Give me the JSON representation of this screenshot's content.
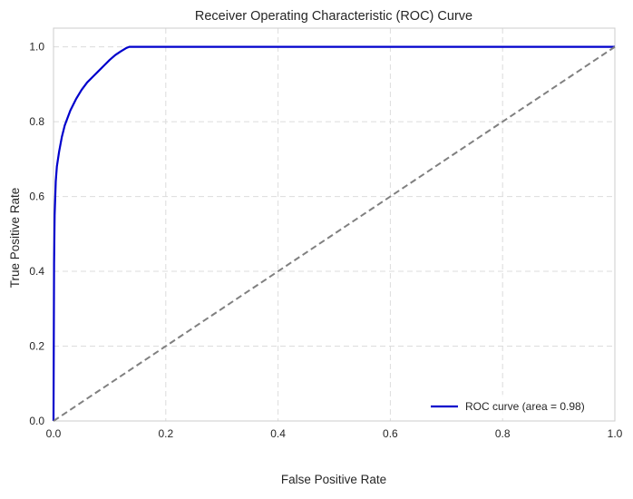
{
  "chart_data": {
    "type": "line",
    "title": "Receiver Operating Characteristic (ROC) Curve",
    "xlabel": "False Positive Rate",
    "ylabel": "True Positive Rate",
    "xlim": [
      0.0,
      1.0
    ],
    "ylim": [
      0.0,
      1.05
    ],
    "x_ticks": [
      "0.0",
      "0.2",
      "0.4",
      "0.6",
      "0.8",
      "1.0"
    ],
    "y_ticks": [
      "0.0",
      "0.2",
      "0.4",
      "0.6",
      "0.8",
      "1.0"
    ],
    "grid": true,
    "legend_position": "bottom-right",
    "series": [
      {
        "name": "ROC curve (area = 0.98)",
        "color": "#0000cc",
        "style": "solid",
        "x": [
          0.0,
          0.001,
          0.002,
          0.004,
          0.006,
          0.01,
          0.015,
          0.02,
          0.03,
          0.04,
          0.05,
          0.06,
          0.07,
          0.08,
          0.09,
          0.1,
          0.11,
          0.12,
          0.13,
          0.135,
          0.14,
          0.2,
          0.4,
          0.6,
          0.8,
          1.0
        ],
        "y": [
          0.0,
          0.42,
          0.55,
          0.64,
          0.68,
          0.72,
          0.76,
          0.79,
          0.83,
          0.86,
          0.885,
          0.905,
          0.92,
          0.935,
          0.95,
          0.965,
          0.978,
          0.988,
          0.997,
          1.0,
          1.0,
          1.0,
          1.0,
          1.0,
          1.0,
          1.0
        ]
      },
      {
        "name": "",
        "color": "#808080",
        "style": "dashed",
        "x": [
          0.0,
          1.0
        ],
        "y": [
          0.0,
          1.0
        ]
      }
    ]
  }
}
